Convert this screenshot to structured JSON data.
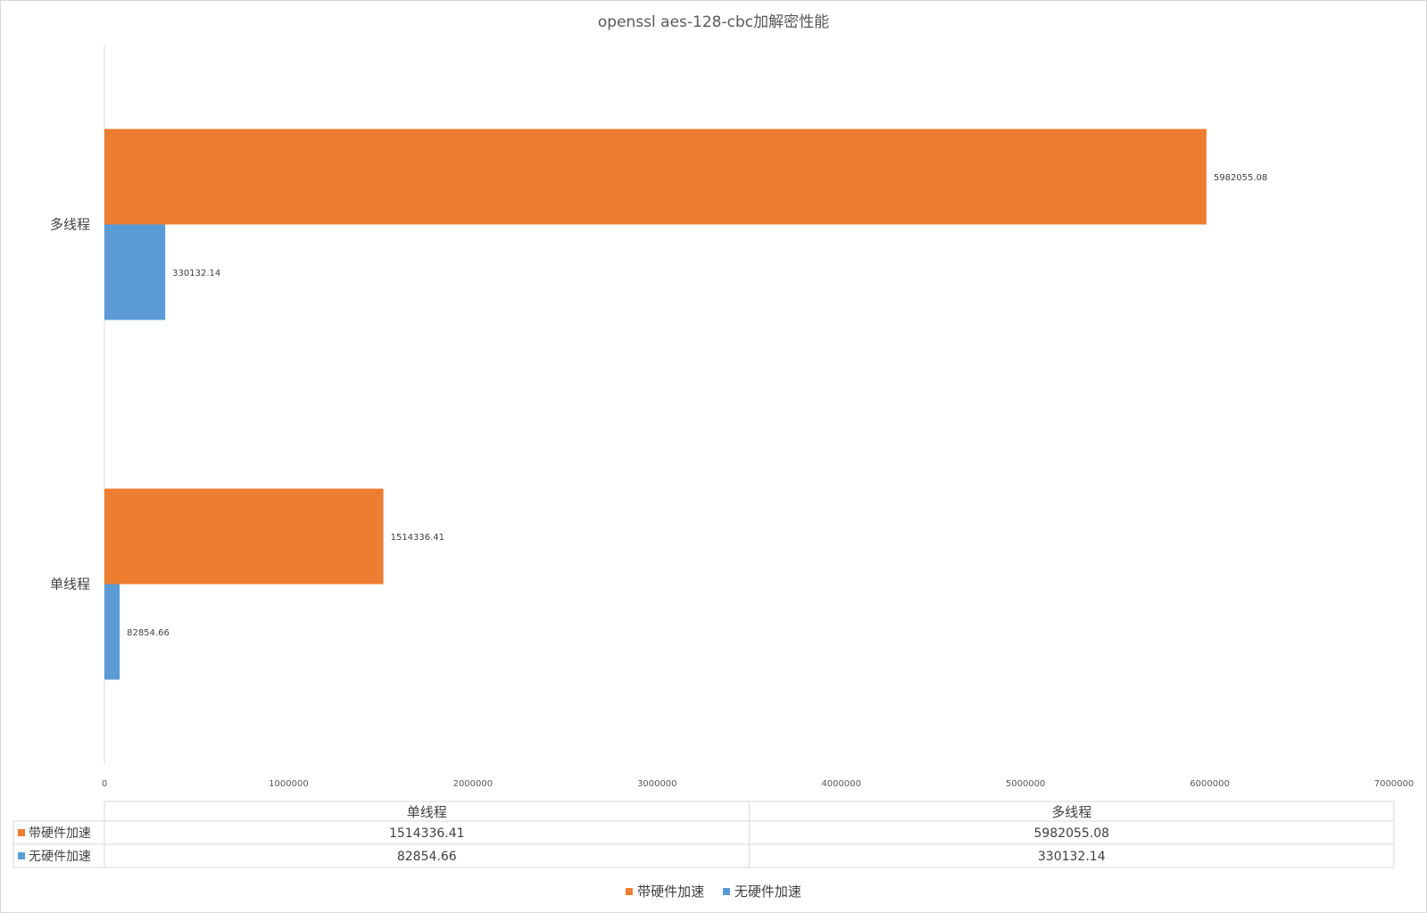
{
  "chart_data": {
    "type": "bar",
    "orientation": "horizontal",
    "title": "openssl aes-128-cbc加解密性能",
    "categories": [
      "单线程",
      "多线程"
    ],
    "series": [
      {
        "name": "带硬件加速",
        "color": "#ED7D31",
        "values": [
          1514336.41,
          5982055.08
        ],
        "labels": [
          "1514336.41",
          "5982055.08"
        ]
      },
      {
        "name": "无硬件加速",
        "color": "#5B9BD5",
        "values": [
          82854.66,
          330132.14
        ],
        "labels": [
          "82854.66",
          "330132.14"
        ]
      }
    ],
    "xlim": [
      0,
      7000000
    ],
    "xticks": [
      "0",
      "1000000",
      "2000000",
      "3000000",
      "4000000",
      "5000000",
      "6000000",
      "7000000"
    ],
    "grid": false,
    "data_table": true,
    "legend": "bottom"
  }
}
